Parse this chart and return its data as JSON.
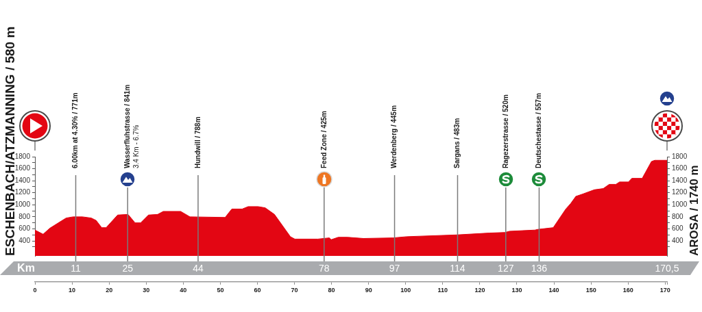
{
  "chart_data": {
    "type": "area",
    "ylabel": "ESCHENBACH/ATZMANNING / 580 m",
    "y2label": "AROSA / 1740 m",
    "x2label": "Km",
    "x": [
      0,
      2.2,
      4,
      8.4,
      10.3,
      12.8,
      15.2,
      16.5,
      18,
      19.2,
      22.3,
      25.1,
      27,
      28.5,
      30.6,
      33.1,
      34.6,
      39.3,
      41.8,
      51.3,
      53.1,
      55.9,
      57.5,
      60.2,
      62.1,
      64.6,
      68.9,
      70.1,
      76.3,
      79.4,
      79.9,
      81.8,
      84.3,
      88.6,
      96.6,
      100.3,
      113.9,
      122.5,
      126.8,
      128,
      134.9,
      135.5,
      139.8,
      143.2,
      144.5,
      145.9,
      147.8,
      150.9,
      153.3,
      154.9,
      156.7,
      157.7,
      160.1,
      161,
      163.8,
      166.3,
      167.2,
      170.5
    ],
    "values": [
      580,
      510,
      610,
      780,
      800,
      800,
      780,
      740,
      620,
      620,
      830,
      840,
      700,
      700,
      830,
      840,
      890,
      890,
      800,
      790,
      930,
      930,
      970,
      970,
      950,
      840,
      470,
      430,
      430,
      450,
      420,
      460,
      460,
      440,
      450,
      470,
      500,
      530,
      540,
      560,
      580,
      590,
      620,
      930,
      1020,
      1140,
      1180,
      1250,
      1270,
      1340,
      1340,
      1380,
      1380,
      1440,
      1440,
      1720,
      1740,
      1740
    ],
    "color": "#e30613",
    "marker": "none",
    "xlim": [
      0,
      170.5
    ],
    "xticks": [
      0,
      10,
      20,
      30,
      40,
      50,
      60,
      70,
      80,
      90,
      100,
      110,
      120,
      130,
      140,
      150,
      160,
      170,
      {
        "value": 170.5,
        "label": null
      }
    ],
    "x2lim": [
      0,
      170.5
    ],
    "x2ticks": [
      11,
      25,
      44,
      78,
      97,
      114,
      127,
      136,
      {
        "value": 170.5,
        "label": "170,5"
      }
    ],
    "ylim": [
      150,
      1800
    ],
    "yticks": [
      {
        "value": 300,
        "label": null
      },
      400,
      {
        "value": 500,
        "label": null
      },
      600,
      {
        "value": 700,
        "label": null
      },
      800,
      {
        "value": 900,
        "label": null
      },
      1000,
      {
        "value": 1100,
        "label": null
      },
      1200,
      {
        "value": 1300,
        "label": null
      },
      1400,
      {
        "value": 1500,
        "label": null
      },
      1600,
      {
        "value": 1700,
        "label": null
      },
      1800
    ],
    "y2lim": [
      150,
      1800
    ],
    "y2ticks": [
      {
        "value": 300,
        "label": null
      },
      400,
      {
        "value": 500,
        "label": null
      },
      600,
      {
        "value": 700,
        "label": null
      },
      800,
      {
        "value": 900,
        "label": null
      },
      1000,
      {
        "value": 1100,
        "label": null
      },
      1200,
      {
        "value": 1300,
        "label": null
      },
      1400,
      {
        "value": 1500,
        "label": null
      },
      1600,
      {
        "value": 1700,
        "label": null
      },
      1800
    ],
    "ref_lines": [
      {
        "axis": "x",
        "value": 11,
        "label": "6.00km at 4.30% / 771m",
        "color": "#7a7a7a"
      },
      {
        "axis": "x",
        "value": 25,
        "label": "Wasserfluhstrasse / 841m\n3.4 Km - 6.7%",
        "color": "#7a7a7a"
      },
      {
        "axis": "x",
        "value": 44,
        "label": "Hundwill / 788m",
        "color": "#7a7a7a"
      },
      {
        "axis": "x",
        "value": 78,
        "label": "Feed Zone / 425m",
        "color": "#7a7a7a"
      },
      {
        "axis": "x",
        "value": 97,
        "label": "Werdenberg / 445m",
        "color": "#7a7a7a"
      },
      {
        "axis": "x",
        "value": 114,
        "label": "Sargans / 483m",
        "color": "#7a7a7a"
      },
      {
        "axis": "x",
        "value": 127,
        "label": "Ragezerstrasse / 520m",
        "color": "#7a7a7a"
      },
      {
        "axis": "x",
        "value": 136,
        "label": "Deutschestasse / 557m",
        "color": "#7a7a7a"
      }
    ]
  }
}
